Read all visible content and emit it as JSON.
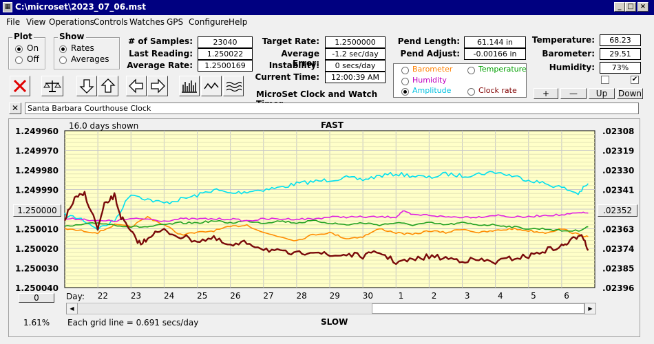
{
  "window": {
    "title": "C:\\microset\\2023_07_06.mst",
    "app_icon": "calculator-icon"
  },
  "menu": [
    "File",
    "View",
    "Operations",
    "Controls",
    "Watches",
    "GPS",
    "Configure",
    "Help"
  ],
  "plot_group": {
    "title": "Plot",
    "options": [
      "On",
      "Off"
    ],
    "selected": "On"
  },
  "show_group": {
    "title": "Show",
    "options": [
      "Rates",
      "Averages"
    ],
    "selected": "Rates"
  },
  "stats": {
    "samples_label": "# of Samples:",
    "samples": "23040",
    "last_reading_label": "Last Reading:",
    "last_reading": "1.250022",
    "average_rate_label": "Average Rate:",
    "average_rate": "1.2500169",
    "target_rate_label": "Target Rate:",
    "target_rate": "1.2500000",
    "average_error_label": "Average Error:",
    "average_error": "-1.2 sec/day",
    "instability_label": "Instability:",
    "instability": "0 secs/day",
    "current_time_label": "Current Time:",
    "current_time": "12:00:39 AM",
    "pend_length_label": "Pend Length:",
    "pend_length": "61.144 in",
    "pend_adjust_label": "Pend Adjust:",
    "pend_adjust": "-0.00166 in",
    "temperature_label": "Temperature:",
    "temperature": "68.23",
    "barometer_label": "Barometer:",
    "barometer": "29.51",
    "humidity_label": "Humidity:",
    "humidity": "73%"
  },
  "app_caption": "MicroSet Clock and Watch Timer",
  "series_selector": [
    {
      "label": "Barometer",
      "color": "#ff8000",
      "selected": false
    },
    {
      "label": "Temperature",
      "color": "#00a000",
      "selected": false
    },
    {
      "label": "Humidity",
      "color": "#c000c0",
      "selected": false
    },
    {
      "label": "Amplitude",
      "color": "#00c0e0",
      "selected": true
    },
    {
      "label": "Clock rate",
      "color": "#800000",
      "selected": false
    }
  ],
  "toolbar": [
    "close-icon",
    "balance-scale-icon",
    "arrow-down-icon",
    "arrow-up-icon",
    "arrow-left-icon",
    "arrow-right-icon",
    "bar-graph-icon",
    "line-graph-icon",
    "wave-graph-icon"
  ],
  "scale_buttons": {
    "plus": "+",
    "minus": "—",
    "up": "Up",
    "down": "Down"
  },
  "checkboxes": [
    false,
    true
  ],
  "clock_name": "Santa Barbara Courthouse Clock",
  "clear_button": "✕",
  "graph": {
    "days_shown": "16.0 days shown",
    "top_label": "FAST",
    "bottom_label": "SLOW",
    "grid_note": "Each grid line = 0.691 secs/day",
    "center_button": "1.250000",
    "right_center_button": ".02352",
    "zero_button": "0",
    "percent": "1.61%",
    "day_label": "Day:"
  },
  "chart_data": {
    "type": "line",
    "x_ticks": [
      "22",
      "23",
      "24",
      "25",
      "26",
      "27",
      "28",
      "29",
      "30",
      "1",
      "2",
      "3",
      "4",
      "5",
      "6"
    ],
    "y_ticks_left": [
      "1.249960",
      "1.249970",
      "1.249980",
      "1.249990",
      "1.250000",
      "1.250010",
      "1.250020",
      "1.250030",
      "1.250040"
    ],
    "y_ticks_right": [
      ".02308",
      ".02319",
      ".02330",
      ".02341",
      ".02352",
      ".02363",
      ".02374",
      ".02385",
      ".02396"
    ],
    "xlim": [
      21,
      37
    ],
    "ylim_left": [
      1.25004,
      1.24996
    ],
    "series": [
      {
        "color": "#00e0f0",
        "x": [
          21.0,
          21.5,
          22.0,
          22.5,
          23.0,
          23.5,
          24.0,
          24.5,
          25.0,
          25.5,
          26.0,
          26.5,
          27.0,
          27.5,
          28.0,
          28.5,
          29.0,
          29.5,
          30.0,
          30.5,
          31.0,
          31.5,
          32.0,
          32.5,
          33.0,
          33.5,
          34.0,
          34.5,
          35.0,
          35.5,
          36.0,
          36.5,
          36.8
        ],
        "y": [
          1.250003,
          1.250005,
          1.25001,
          1.250006,
          1.249992,
          1.249995,
          1.249997,
          1.249995,
          1.249993,
          1.24999,
          1.249992,
          1.249991,
          1.24999,
          1.249989,
          1.249987,
          1.249986,
          1.249985,
          1.249984,
          1.249985,
          1.249983,
          1.249982,
          1.249983,
          1.249984,
          1.249982,
          1.249983,
          1.249982,
          1.249981,
          1.249983,
          1.249985,
          1.249987,
          1.249989,
          1.249992,
          1.249987
        ]
      },
      {
        "color": "#ff8c00",
        "x": [
          21.0,
          21.5,
          22.0,
          22.5,
          23.0,
          23.5,
          24.0,
          24.5,
          25.0,
          25.5,
          26.0,
          26.5,
          27.0,
          27.5,
          28.0,
          28.5,
          29.0,
          29.5,
          30.0,
          30.5,
          31.0,
          31.5,
          32.0,
          32.5,
          33.0,
          33.5,
          34.0,
          34.5,
          35.0,
          35.5,
          36.0,
          36.5,
          36.8
        ],
        "y": [
          1.25001,
          1.250011,
          1.250012,
          1.250008,
          1.250009,
          1.250004,
          1.250008,
          1.250013,
          1.250012,
          1.250011,
          1.250009,
          1.250008,
          1.250012,
          1.250014,
          1.250016,
          1.250013,
          1.250012,
          1.250015,
          1.250014,
          1.25001,
          1.250012,
          1.250013,
          1.250011,
          1.250012,
          1.25001,
          1.250012,
          1.250011,
          1.25001,
          1.250011,
          1.250012,
          1.25001,
          1.250013,
          1.250014
        ]
      },
      {
        "color": "#20a020",
        "x": [
          21.0,
          21.5,
          22.0,
          22.5,
          23.0,
          23.5,
          24.0,
          24.5,
          25.0,
          25.5,
          26.0,
          26.5,
          27.0,
          27.5,
          28.0,
          28.5,
          29.0,
          29.5,
          30.0,
          30.5,
          31.0,
          31.5,
          32.0,
          32.5,
          33.0,
          33.5,
          34.0,
          34.5,
          35.0,
          35.5,
          36.0,
          36.5,
          36.8
        ],
        "y": [
          1.250009,
          1.250008,
          1.250007,
          1.250008,
          1.250009,
          1.250009,
          1.250008,
          1.250007,
          1.250007,
          1.250006,
          1.250007,
          1.250006,
          1.250007,
          1.250006,
          1.250007,
          1.250006,
          1.250007,
          1.250008,
          1.250007,
          1.250008,
          1.250007,
          1.250008,
          1.250007,
          1.250008,
          1.250007,
          1.250008,
          1.250008,
          1.250009,
          1.25001,
          1.25001,
          1.250011,
          1.250011,
          1.250009
        ]
      },
      {
        "color": "#e020e0",
        "x": [
          21.0,
          21.5,
          22.0,
          22.5,
          23.0,
          23.5,
          24.0,
          24.5,
          25.0,
          25.5,
          26.0,
          26.5,
          27.0,
          27.5,
          28.0,
          28.5,
          29.0,
          29.5,
          30.0,
          30.5,
          31.0,
          31.2,
          31.5,
          32.0,
          32.5,
          33.0,
          33.5,
          34.0,
          34.5,
          35.0,
          35.5,
          36.0,
          36.5,
          36.8
        ],
        "y": [
          1.250005,
          1.250005,
          1.250006,
          1.250006,
          1.250005,
          1.250005,
          1.250006,
          1.250005,
          1.250005,
          1.250005,
          1.250005,
          1.250006,
          1.250005,
          1.250005,
          1.250005,
          1.250005,
          1.250004,
          1.250004,
          1.250004,
          1.250004,
          1.250004,
          1.250001,
          1.250003,
          1.250003,
          1.250004,
          1.250004,
          1.250004,
          1.250003,
          1.250004,
          1.250004,
          1.250003,
          1.250003,
          1.250002,
          1.250002
        ]
      },
      {
        "color": "#7a0a0a",
        "x": [
          21.0,
          21.3,
          21.6,
          22.0,
          22.2,
          22.5,
          22.7,
          23.0,
          23.3,
          23.6,
          24.0,
          24.5,
          25.0,
          25.5,
          26.0,
          26.5,
          27.0,
          27.5,
          28.0,
          28.5,
          29.0,
          29.5,
          30.0,
          30.5,
          31.0,
          31.5,
          32.0,
          32.5,
          33.0,
          33.5,
          34.0,
          34.5,
          35.0,
          35.5,
          36.0,
          36.3,
          36.6,
          36.8
        ],
        "y": [
          1.250005,
          1.249995,
          1.249992,
          1.25001,
          1.249998,
          1.249993,
          1.250004,
          1.250012,
          1.250018,
          1.250013,
          1.250011,
          1.250014,
          1.250016,
          1.250015,
          1.250019,
          1.250017,
          1.25002,
          1.250022,
          1.250023,
          1.250021,
          1.250024,
          1.250023,
          1.250024,
          1.250022,
          1.250027,
          1.250026,
          1.250024,
          1.250025,
          1.250026,
          1.250026,
          1.250027,
          1.250025,
          1.250024,
          1.250021,
          1.250019,
          1.250016,
          1.250012,
          1.250021
        ]
      }
    ]
  }
}
